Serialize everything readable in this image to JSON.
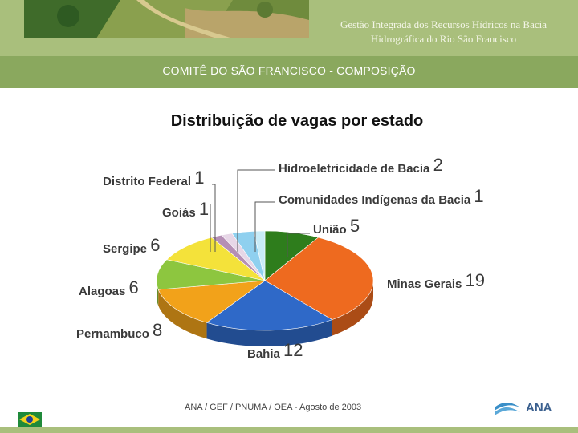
{
  "header": {
    "title_line1": "Gestão Integrada dos Recursos  Hídricos na Bacia",
    "title_line2": "Hidrográfica  do Rio São Francisco"
  },
  "section_title": "COMITÊ DO SÃO FRANCISCO - COMPOSIÇÃO",
  "footer": {
    "credit": "ANA / GEF / PNUMA / OEA - Agosto de 2003",
    "logo_text": "ANA"
  },
  "colors": {
    "header": "#a9bf7c",
    "band": "#8aa85e"
  },
  "chart_data": {
    "type": "pie",
    "title": "Distribuição de vagas por estado",
    "legend": "none",
    "slices": [
      {
        "label": "União",
        "value": 5,
        "color": "#2e7d1c"
      },
      {
        "label": "Minas Gerais",
        "value": 19,
        "color": "#ee6a1f"
      },
      {
        "label": "Bahia",
        "value": 12,
        "color": "#2f69c8"
      },
      {
        "label": "Pernambuco",
        "value": 8,
        "color": "#f2a21a"
      },
      {
        "label": "Alagoas",
        "value": 6,
        "color": "#8dc63f"
      },
      {
        "label": "Sergipe",
        "value": 6,
        "color": "#f4e23a"
      },
      {
        "label": "Goiás",
        "value": 1,
        "color": "#b58fb5"
      },
      {
        "label": "Distrito Federal",
        "value": 1,
        "color": "#e7d7e7"
      },
      {
        "label": "Hidroeletricidade de Bacia",
        "value": 2,
        "color": "#8fd0ef"
      },
      {
        "label": "Comunidades Indígenas da Bacia",
        "value": 1,
        "color": "#c8ecf8"
      }
    ]
  }
}
